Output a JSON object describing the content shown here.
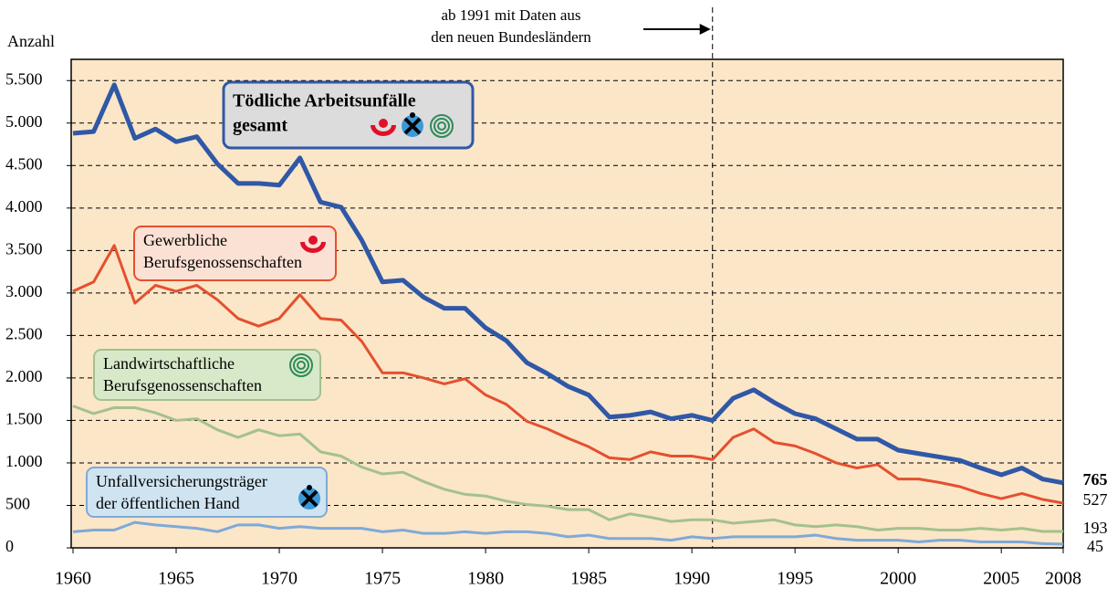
{
  "chart_data": {
    "type": "line",
    "y_label": "Anzahl",
    "x": [
      1960,
      1961,
      1962,
      1963,
      1964,
      1965,
      1966,
      1967,
      1968,
      1969,
      1970,
      1971,
      1972,
      1973,
      1974,
      1975,
      1976,
      1977,
      1978,
      1979,
      1980,
      1981,
      1982,
      1983,
      1984,
      1985,
      1986,
      1987,
      1988,
      1989,
      1990,
      1991,
      1992,
      1993,
      1994,
      1995,
      1996,
      1997,
      1998,
      1999,
      2000,
      2001,
      2002,
      2003,
      2004,
      2005,
      2006,
      2007,
      2008
    ],
    "xlim": [
      1960,
      2008
    ],
    "xticks": [
      1960,
      1965,
      1970,
      1975,
      1980,
      1985,
      1990,
      1995,
      2000,
      2005,
      2008
    ],
    "ylim": [
      0,
      5750
    ],
    "yticks": [
      0,
      500,
      {
        "value": 1000,
        "label": "1.000"
      },
      {
        "value": 1500,
        "label": "1.500"
      },
      {
        "value": 2000,
        "label": "2.000"
      },
      {
        "value": 2500,
        "label": "2.500"
      },
      {
        "value": 3000,
        "label": "3.000"
      },
      {
        "value": 3500,
        "label": "3.500"
      },
      {
        "value": 4000,
        "label": "4.000"
      },
      {
        "value": 4500,
        "label": "4.500"
      },
      {
        "value": 5000,
        "label": "5.000"
      },
      {
        "value": 5500,
        "label": "5.500"
      }
    ],
    "grid": true,
    "background": "#fbe6c8",
    "annotation": {
      "x": 1991,
      "lines": [
        "ab 1991 mit Daten aus",
        "den neuen Bundesländern"
      ]
    },
    "series": [
      {
        "label": [
          "Tödliche Arbeitsunfälle",
          "gesamt"
        ],
        "color": "#2f58a6",
        "values": [
          4880,
          4900,
          5450,
          4820,
          4930,
          4780,
          4840,
          4520,
          4290,
          4290,
          4270,
          4590,
          4070,
          4010,
          3620,
          3130,
          3150,
          2950,
          2820,
          2820,
          2590,
          2440,
          2180,
          2050,
          1900,
          1800,
          1540,
          1560,
          1600,
          1520,
          1560,
          1500,
          1760,
          1860,
          1710,
          1580,
          1520,
          1400,
          1280,
          1280,
          1150,
          1110,
          1070,
          1030,
          940,
          860,
          940,
          810,
          765
        ]
      },
      {
        "label": [
          "Gewerbliche",
          "Berufsgenossenschaften"
        ],
        "color": "#e4502f",
        "values": [
          3020,
          3130,
          3560,
          2880,
          3090,
          3020,
          3090,
          2920,
          2700,
          2610,
          2700,
          2980,
          2700,
          2680,
          2430,
          2060,
          2060,
          2000,
          1930,
          1990,
          1800,
          1690,
          1490,
          1400,
          1290,
          1190,
          1060,
          1040,
          1130,
          1080,
          1080,
          1040,
          1300,
          1400,
          1240,
          1200,
          1110,
          1000,
          940,
          980,
          810,
          810,
          770,
          720,
          640,
          580,
          640,
          570,
          527
        ]
      },
      {
        "label": [
          "Landwirtschaftliche",
          "Berufsgenossenschaften"
        ],
        "color": "#a4c18c",
        "values": [
          1670,
          1580,
          1650,
          1650,
          1590,
          1500,
          1520,
          1390,
          1300,
          1390,
          1320,
          1340,
          1130,
          1080,
          950,
          870,
          890,
          780,
          690,
          630,
          610,
          550,
          510,
          490,
          450,
          450,
          330,
          400,
          360,
          310,
          330,
          330,
          290,
          310,
          330,
          270,
          250,
          270,
          250,
          210,
          230,
          230,
          210,
          210,
          230,
          210,
          230,
          193,
          193
        ]
      },
      {
        "label": [
          "Unfallversicherungsträger",
          "der öffentlichen Hand"
        ],
        "color": "#7fa9d8",
        "values": [
          190,
          210,
          210,
          300,
          270,
          250,
          230,
          190,
          270,
          270,
          230,
          250,
          230,
          230,
          230,
          190,
          210,
          170,
          170,
          190,
          170,
          190,
          190,
          170,
          130,
          150,
          110,
          110,
          110,
          90,
          130,
          110,
          130,
          130,
          130,
          130,
          150,
          110,
          90,
          90,
          90,
          70,
          90,
          90,
          70,
          70,
          70,
          50,
          45
        ]
      }
    ]
  }
}
